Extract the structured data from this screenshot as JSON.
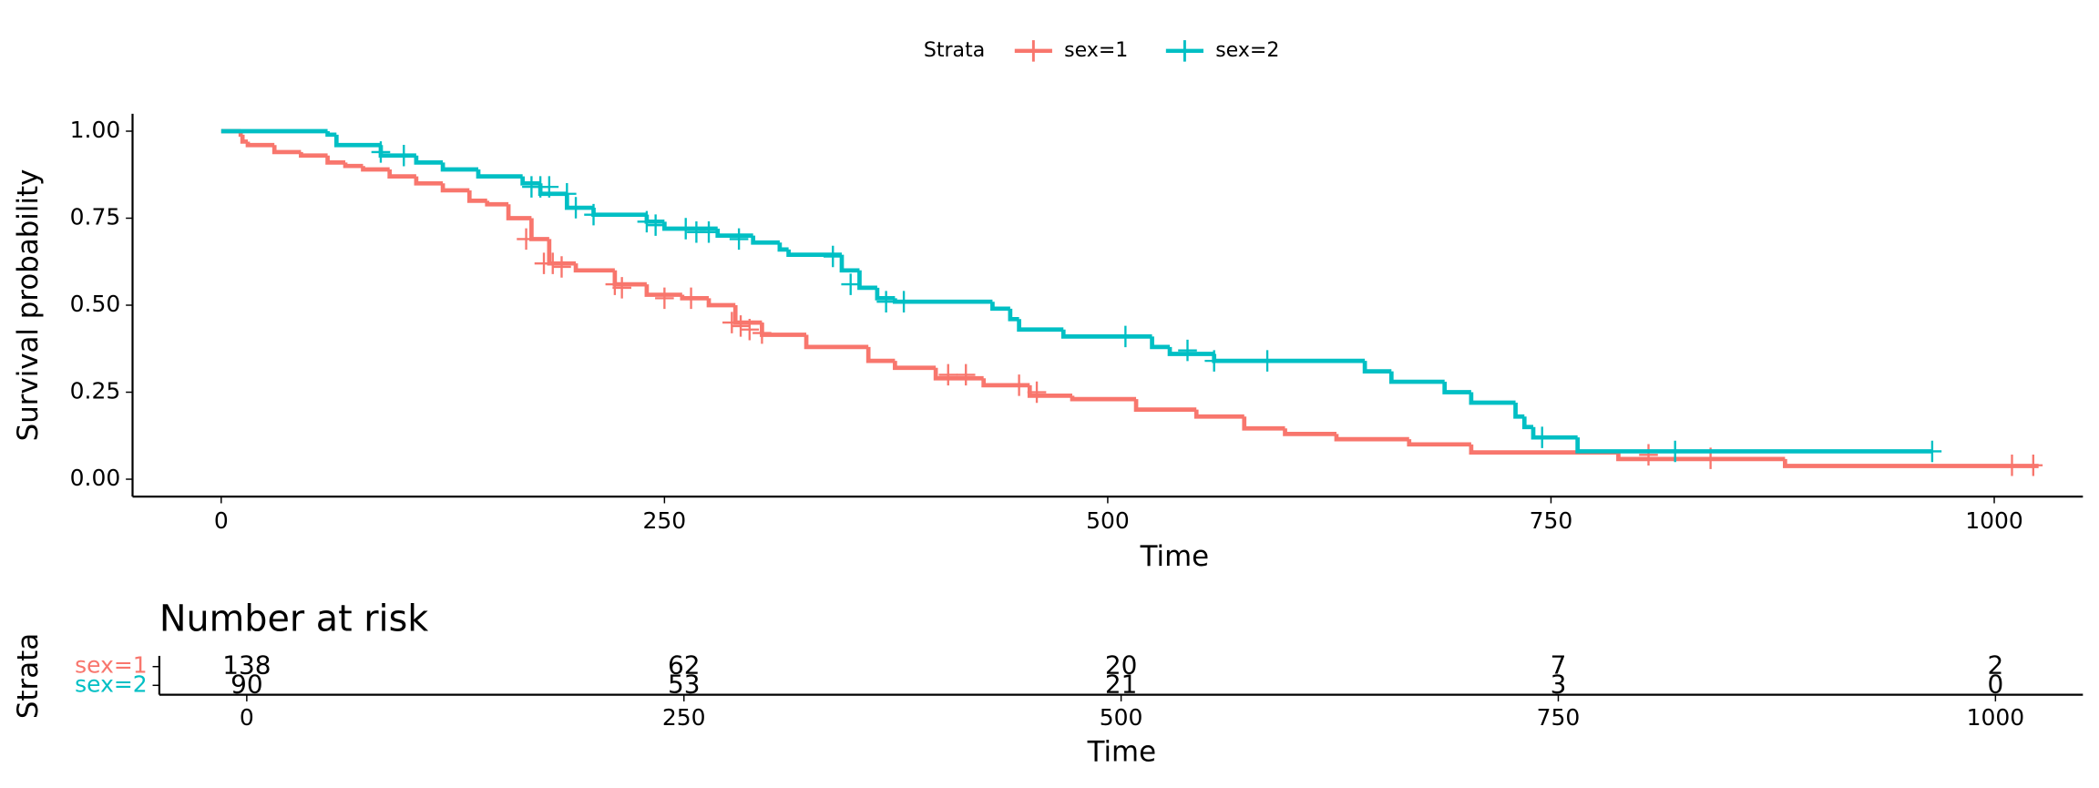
{
  "chart_data": [
    {
      "type": "step",
      "legend_title": "Strata",
      "xlabel": "Time",
      "ylabel": "Survival probability",
      "xlim": [
        -50,
        1050
      ],
      "ylim": [
        -0.05,
        1.05
      ],
      "xticks": [
        0,
        250,
        500,
        750,
        1000
      ],
      "yticks": [
        {
          "value": 0,
          "label": "0.00"
        },
        {
          "value": 0.25,
          "label": "0.25"
        },
        {
          "value": 0.5,
          "label": "0.50"
        },
        {
          "value": 0.75,
          "label": "0.75"
        },
        {
          "value": 1,
          "label": "1.00"
        }
      ],
      "legend_position": "top",
      "series": [
        {
          "name": "sex=1",
          "color": "#f8766d",
          "x": [
            0,
            11,
            12,
            15,
            30,
            45,
            60,
            70,
            80,
            95,
            110,
            125,
            140,
            150,
            162,
            175,
            185,
            200,
            222,
            240,
            260,
            275,
            290,
            305,
            330,
            365,
            380,
            403,
            430,
            456,
            480,
            516,
            550,
            577,
            600,
            629,
            670,
            705,
            788,
            882,
            1025
          ],
          "values": [
            1,
            0.99,
            0.97,
            0.96,
            0.94,
            0.93,
            0.91,
            0.9,
            0.89,
            0.87,
            0.85,
            0.83,
            0.8,
            0.79,
            0.75,
            0.69,
            0.62,
            0.6,
            0.56,
            0.53,
            0.52,
            0.5,
            0.45,
            0.415,
            0.38,
            0.34,
            0.32,
            0.29,
            0.27,
            0.24,
            0.23,
            0.2,
            0.18,
            0.146,
            0.13,
            0.115,
            0.1,
            0.077,
            0.058,
            0.038,
            0.038
          ],
          "censor_x": [
            172,
            182,
            187,
            192,
            222,
            226,
            250,
            265,
            288,
            293,
            298,
            305,
            410,
            420,
            450,
            460,
            805,
            840,
            1010,
            1022
          ],
          "censor_y": [
            0.69,
            0.62,
            0.62,
            0.61,
            0.56,
            0.55,
            0.52,
            0.52,
            0.45,
            0.44,
            0.43,
            0.42,
            0.3,
            0.3,
            0.27,
            0.25,
            0.07,
            0.06,
            0.04,
            0.04
          ]
        },
        {
          "name": "sex=2",
          "color": "#00bfc4",
          "x": [
            0,
            60,
            65,
            90,
            110,
            125,
            145,
            170,
            180,
            195,
            210,
            240,
            250,
            280,
            300,
            315,
            320,
            350,
            360,
            370,
            380,
            435,
            445,
            450,
            475,
            525,
            535,
            560,
            645,
            660,
            690,
            705,
            730,
            735,
            740,
            765,
            965
          ],
          "values": [
            1,
            0.99,
            0.96,
            0.93,
            0.91,
            0.89,
            0.87,
            0.85,
            0.82,
            0.78,
            0.76,
            0.74,
            0.72,
            0.7,
            0.68,
            0.66,
            0.645,
            0.6,
            0.55,
            0.52,
            0.51,
            0.49,
            0.46,
            0.43,
            0.41,
            0.38,
            0.36,
            0.34,
            0.31,
            0.28,
            0.25,
            0.22,
            0.18,
            0.15,
            0.12,
            0.08,
            0.08
          ],
          "censor_x": [
            90,
            103,
            175,
            180,
            185,
            195,
            200,
            210,
            240,
            245,
            262,
            268,
            275,
            292,
            345,
            355,
            375,
            385,
            510,
            545,
            560,
            590,
            745,
            820,
            965
          ],
          "censor_y": [
            0.94,
            0.93,
            0.84,
            0.84,
            0.84,
            0.82,
            0.78,
            0.76,
            0.74,
            0.73,
            0.72,
            0.71,
            0.71,
            0.69,
            0.64,
            0.56,
            0.51,
            0.51,
            0.41,
            0.37,
            0.34,
            0.34,
            0.12,
            0.08,
            0.08
          ]
        }
      ]
    },
    {
      "type": "risk_table",
      "title": "Number at risk",
      "xlabel": "Time",
      "ylabel": "Strata",
      "xlim": [
        -50,
        1050
      ],
      "xticks": [
        0,
        250,
        500,
        750,
        1000
      ],
      "x": [
        0,
        250,
        500,
        750,
        1000
      ],
      "series": [
        {
          "name": "sex=1",
          "color": "#f8766d",
          "values": [
            138,
            62,
            20,
            7,
            2
          ]
        },
        {
          "name": "sex=2",
          "color": "#00bfc4",
          "values": [
            90,
            53,
            21,
            3,
            0
          ]
        }
      ]
    }
  ]
}
